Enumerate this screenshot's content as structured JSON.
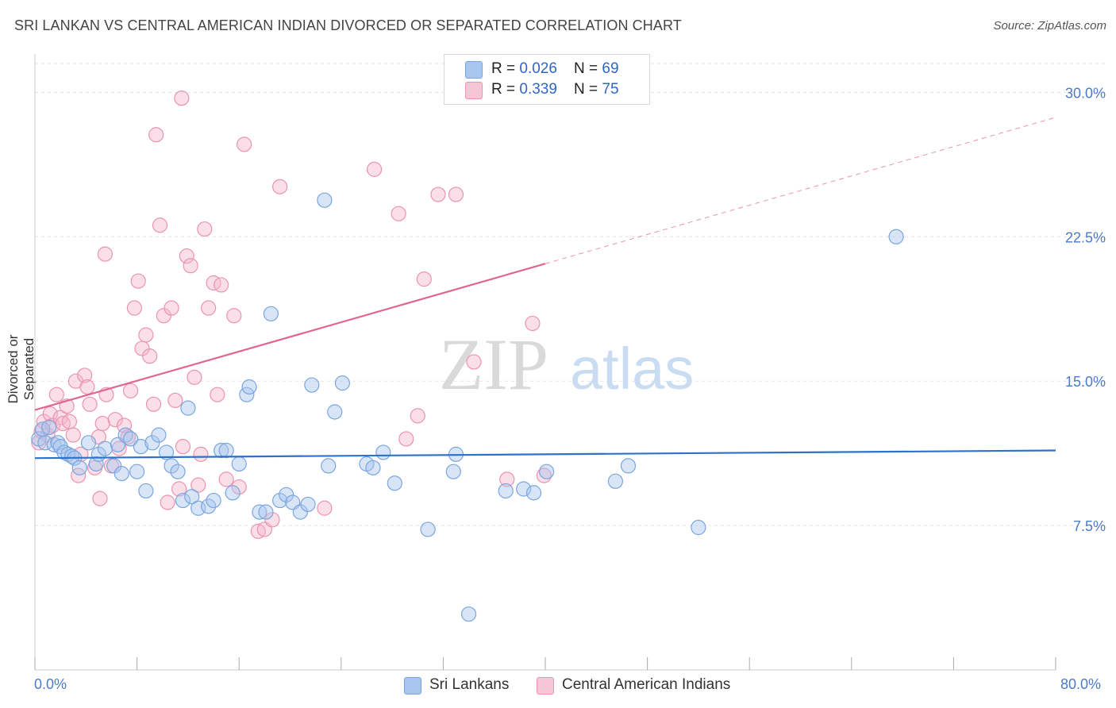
{
  "header": {
    "title": "SRI LANKAN VS CENTRAL AMERICAN INDIAN DIVORCED OR SEPARATED CORRELATION CHART",
    "source": "Source: ZipAtlas.com"
  },
  "watermark": {
    "zip": "ZIP",
    "atlas": "atlas"
  },
  "colors": {
    "blue_fill": "#a9c6ee",
    "blue_stroke": "#7aa5de",
    "blue_line": "#2e72c8",
    "pink_fill": "#f5b8cb",
    "pink_stroke": "#ec93ad",
    "pink_line": "#e06592",
    "grid": "#e3e3e3",
    "tick_label": "#4a7bc8"
  },
  "legend_top": {
    "rows": [
      {
        "r_label": "R = ",
        "r_value": "0.026",
        "n_label": "N = ",
        "n_value": "69"
      },
      {
        "r_label": "R = ",
        "r_value": "0.339",
        "n_label": "N = ",
        "n_value": "75"
      }
    ]
  },
  "chart_data": {
    "type": "scatter",
    "title": "SRI LANKAN VS CENTRAL AMERICAN INDIAN DIVORCED OR SEPARATED CORRELATION CHART",
    "xlabel": "",
    "ylabel": "Divorced or Separated",
    "xlim": [
      0,
      80
    ],
    "ylim": [
      0,
      31.5
    ],
    "x_tick_labels": [
      "0.0%",
      "80.0%"
    ],
    "y_ticks": [
      7.5,
      15.0,
      22.5,
      30.0
    ],
    "y_tick_labels": [
      "7.5%",
      "15.0%",
      "22.5%",
      "30.0%"
    ],
    "grid": true,
    "legend_position": "bottom-center",
    "series": [
      {
        "name": "Sri Lankans",
        "r": 0.026,
        "n": 69,
        "trend": {
          "x": [
            0,
            80
          ],
          "y": [
            11.0,
            11.4
          ]
        },
        "points": [
          [
            0.3,
            12.0
          ],
          [
            0.6,
            12.5
          ],
          [
            0.8,
            11.8
          ],
          [
            1.1,
            12.6
          ],
          [
            1.5,
            11.7
          ],
          [
            1.8,
            11.8
          ],
          [
            2.0,
            11.6
          ],
          [
            2.3,
            11.3
          ],
          [
            2.6,
            11.2
          ],
          [
            2.9,
            11.1
          ],
          [
            3.1,
            11.0
          ],
          [
            3.5,
            10.5
          ],
          [
            4.2,
            11.8
          ],
          [
            4.8,
            10.7
          ],
          [
            5.0,
            11.2
          ],
          [
            5.5,
            11.5
          ],
          [
            6.2,
            10.6
          ],
          [
            6.5,
            11.7
          ],
          [
            6.8,
            10.2
          ],
          [
            7.1,
            12.2
          ],
          [
            7.5,
            12.0
          ],
          [
            8.0,
            10.3
          ],
          [
            8.3,
            11.6
          ],
          [
            8.7,
            9.3
          ],
          [
            9.2,
            11.8
          ],
          [
            9.7,
            12.2
          ],
          [
            10.3,
            11.3
          ],
          [
            10.7,
            10.6
          ],
          [
            11.2,
            10.3
          ],
          [
            11.6,
            8.8
          ],
          [
            12.0,
            13.6
          ],
          [
            12.3,
            9.0
          ],
          [
            12.8,
            8.4
          ],
          [
            13.6,
            8.5
          ],
          [
            14.0,
            8.8
          ],
          [
            14.6,
            11.4
          ],
          [
            15.0,
            11.4
          ],
          [
            15.5,
            9.2
          ],
          [
            16.0,
            10.7
          ],
          [
            16.6,
            14.3
          ],
          [
            16.8,
            14.7
          ],
          [
            17.6,
            8.2
          ],
          [
            18.1,
            8.2
          ],
          [
            18.5,
            18.5
          ],
          [
            19.2,
            8.8
          ],
          [
            19.7,
            9.1
          ],
          [
            20.2,
            8.7
          ],
          [
            20.8,
            8.2
          ],
          [
            21.4,
            8.6
          ],
          [
            21.7,
            14.8
          ],
          [
            22.7,
            24.4
          ],
          [
            23.0,
            10.6
          ],
          [
            23.5,
            13.4
          ],
          [
            24.1,
            14.9
          ],
          [
            26.0,
            10.7
          ],
          [
            26.5,
            10.5
          ],
          [
            27.3,
            11.3
          ],
          [
            28.2,
            9.7
          ],
          [
            30.8,
            7.3
          ],
          [
            32.8,
            10.3
          ],
          [
            33.0,
            11.2
          ],
          [
            34.0,
            2.9
          ],
          [
            36.9,
            9.3
          ],
          [
            38.3,
            9.4
          ],
          [
            39.1,
            9.2
          ],
          [
            40.1,
            10.3
          ],
          [
            45.5,
            9.8
          ],
          [
            46.5,
            10.6
          ],
          [
            52.0,
            7.4
          ],
          [
            67.5,
            22.5
          ]
        ]
      },
      {
        "name": "Central American Indians",
        "r": 0.339,
        "n": 75,
        "trend": {
          "x": [
            0,
            40
          ],
          "y": [
            13.5,
            21.1
          ]
        },
        "trend_ext": {
          "x": [
            40,
            80
          ],
          "y": [
            21.1,
            28.7
          ]
        },
        "points": [
          [
            0.3,
            11.8
          ],
          [
            0.5,
            12.4
          ],
          [
            0.7,
            12.9
          ],
          [
            1.0,
            12.2
          ],
          [
            1.2,
            13.3
          ],
          [
            1.4,
            12.7
          ],
          [
            1.7,
            14.3
          ],
          [
            2.0,
            13.1
          ],
          [
            2.2,
            12.8
          ],
          [
            2.5,
            13.7
          ],
          [
            2.7,
            12.9
          ],
          [
            3.0,
            12.2
          ],
          [
            3.2,
            15.0
          ],
          [
            3.4,
            10.1
          ],
          [
            3.6,
            11.2
          ],
          [
            3.9,
            15.3
          ],
          [
            4.1,
            14.7
          ],
          [
            4.3,
            13.8
          ],
          [
            4.7,
            10.5
          ],
          [
            5.0,
            12.1
          ],
          [
            5.3,
            12.8
          ],
          [
            5.6,
            14.3
          ],
          [
            6.0,
            10.6
          ],
          [
            6.3,
            13.0
          ],
          [
            6.6,
            11.5
          ],
          [
            7.0,
            12.7
          ],
          [
            7.3,
            12.1
          ],
          [
            7.5,
            14.5
          ],
          [
            7.8,
            18.8
          ],
          [
            8.1,
            20.2
          ],
          [
            8.4,
            16.7
          ],
          [
            8.7,
            17.4
          ],
          [
            9.0,
            16.3
          ],
          [
            9.3,
            13.8
          ],
          [
            9.5,
            27.8
          ],
          [
            9.8,
            23.1
          ],
          [
            10.1,
            18.4
          ],
          [
            10.4,
            8.7
          ],
          [
            10.7,
            18.8
          ],
          [
            11.0,
            14.0
          ],
          [
            11.3,
            9.4
          ],
          [
            11.6,
            11.6
          ],
          [
            11.9,
            21.5
          ],
          [
            12.2,
            21.0
          ],
          [
            12.5,
            15.2
          ],
          [
            12.8,
            9.6
          ],
          [
            13.0,
            11.2
          ],
          [
            13.3,
            22.9
          ],
          [
            13.6,
            18.8
          ],
          [
            14.0,
            20.1
          ],
          [
            14.3,
            14.3
          ],
          [
            14.6,
            20.0
          ],
          [
            5.1,
            8.9
          ],
          [
            5.5,
            21.6
          ],
          [
            11.5,
            29.7
          ],
          [
            15.0,
            9.9
          ],
          [
            15.6,
            18.4
          ],
          [
            16.0,
            9.5
          ],
          [
            16.4,
            27.3
          ],
          [
            17.5,
            7.2
          ],
          [
            18.0,
            7.3
          ],
          [
            18.6,
            7.8
          ],
          [
            19.2,
            25.1
          ],
          [
            22.7,
            8.4
          ],
          [
            26.6,
            26.0
          ],
          [
            28.5,
            23.7
          ],
          [
            29.1,
            12.0
          ],
          [
            30.0,
            13.2
          ],
          [
            30.5,
            20.3
          ],
          [
            31.6,
            24.7
          ],
          [
            33.0,
            24.7
          ],
          [
            34.4,
            16.0
          ],
          [
            39.0,
            18.0
          ],
          [
            37.0,
            9.9
          ],
          [
            39.9,
            10.1
          ]
        ]
      }
    ]
  }
}
